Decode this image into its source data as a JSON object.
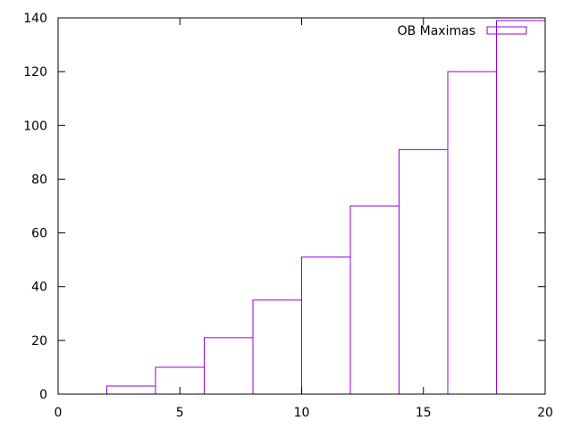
{
  "chart_data": {
    "type": "bar",
    "style": "histogram-outline",
    "bins": [
      {
        "x_start": 2,
        "x_end": 4,
        "value": 3
      },
      {
        "x_start": 4,
        "x_end": 6,
        "value": 10
      },
      {
        "x_start": 6,
        "x_end": 8,
        "value": 21
      },
      {
        "x_start": 8,
        "x_end": 10,
        "value": 35
      },
      {
        "x_start": 10,
        "x_end": 12,
        "value": 51
      },
      {
        "x_start": 12,
        "x_end": 14,
        "value": 70
      },
      {
        "x_start": 14,
        "x_end": 16,
        "value": 91
      },
      {
        "x_start": 16,
        "x_end": 18,
        "value": 120
      },
      {
        "x_start": 18,
        "x_end": 20,
        "value": 139
      }
    ],
    "series": [
      {
        "name": "OB Maximas"
      }
    ],
    "xlim": [
      0,
      20
    ],
    "ylim": [
      0,
      140
    ],
    "x_ticks": [
      "0",
      "5",
      "10",
      "15",
      "20"
    ],
    "y_ticks": [
      "0",
      "20",
      "40",
      "60",
      "80",
      "100",
      "120",
      "140"
    ],
    "title": "",
    "xlabel": "",
    "ylabel": "",
    "grid": false,
    "legend": {
      "position": "top-right",
      "label": "OB Maximas"
    },
    "colors": {
      "series": "#9400d3",
      "axis": "#000000"
    }
  }
}
